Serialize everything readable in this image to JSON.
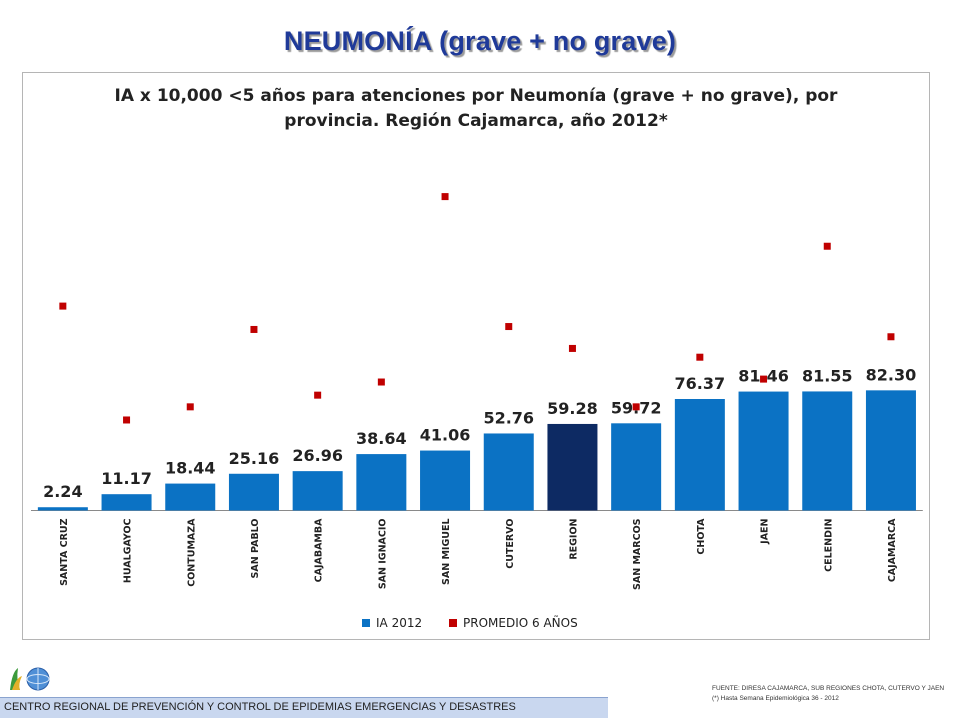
{
  "slide_title": "NEUMONÍA  (grave + no grave)",
  "chart_data": {
    "type": "bar",
    "title_line1": "IA x 10,000 <5 años para atenciones por Neumonía (grave + no grave), por",
    "title_line2": "provincia. Región Cajamarca, año 2012*",
    "categories": [
      "SANTA CRUZ",
      "HUALGAYOC",
      "CONTUMAZA",
      "SAN PABLO",
      "CAJABAMBA",
      "SAN IGNACIO",
      "SAN MIGUEL",
      "CUTERVO",
      "REGION",
      "SAN MARCOS",
      "CHOTA",
      "JAEN",
      "CELENDIN",
      "CAJAMARCA"
    ],
    "series": [
      {
        "name": "IA 2012",
        "chart_type": "bar",
        "color": "#0b72c4",
        "highlight_category": "REGION",
        "highlight_color": "#0d2a63",
        "values": [
          2.24,
          11.17,
          18.44,
          25.16,
          26.96,
          38.64,
          41.06,
          52.76,
          59.28,
          59.72,
          76.37,
          81.46,
          81.55,
          82.3
        ],
        "labels": [
          "2.24",
          "11.17",
          "18.44",
          "25.16",
          "26.96",
          "38.64",
          "41.06",
          "52.76",
          "59.28",
          "59.72",
          "76.37",
          "81.46",
          "81.55",
          "82.30"
        ]
      },
      {
        "name": "PROMEDIO 6 AÑOS",
        "chart_type": "scatter",
        "color": "#c00000",
        "values": [
          140,
          62,
          71,
          124,
          79,
          88,
          215,
          126,
          111,
          71,
          105,
          90,
          181,
          119
        ]
      }
    ],
    "ylim": [
      0,
      220
    ],
    "legend_position": "bottom",
    "grid": false
  },
  "footer": {
    "org_name": "CENTRO REGIONAL DE PREVENCIÓN Y CONTROL DE EPIDEMIAS EMERGENCIAS Y DESASTRES"
  },
  "source": {
    "line1": "FUENTE: DIRESA CAJAMARCA, SUB REGIONES CHOTA, CUTERVO Y JAEN",
    "line2": "(*) Hasta Semana Epidemiológica 36 - 2012"
  }
}
